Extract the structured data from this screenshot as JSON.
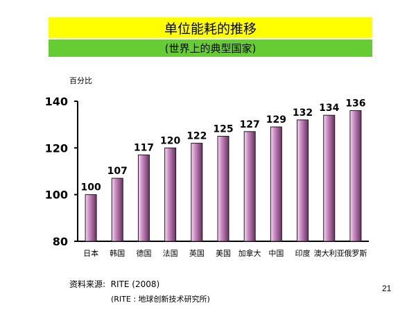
{
  "slide": {
    "title": "单位能耗的推移",
    "subtitle": "(世界上的典型国家)",
    "source": "资料来源:  RITE (2008)",
    "source_note": "(RITE : 地球创新技术研究所)",
    "page_number": "21"
  },
  "colors": {
    "title_bg": "#ffff00",
    "subtitle_bg": "#66cc33",
    "bar_light": "#f4dcf1",
    "bar_mid": "#c98dc1",
    "bar_dark": "#6b2f63"
  },
  "chart_data": {
    "type": "bar",
    "ylabel": "百分比",
    "xlabel": "",
    "ylim": [
      80,
      140
    ],
    "yticks": [
      80,
      100,
      120,
      140
    ],
    "grid": false,
    "categories": [
      "日本",
      "韩国",
      "德国",
      "法国",
      "英国",
      "美国",
      "加拿大",
      "中国",
      "印度",
      "澳大利亚",
      "俄罗斯"
    ],
    "values": [
      100,
      107,
      117,
      120,
      122,
      125,
      127,
      129,
      132,
      134,
      136
    ],
    "data_labels": [
      "100",
      "107",
      "117",
      "120",
      "122",
      "125",
      "127",
      "129",
      "132",
      "134",
      "136"
    ]
  }
}
